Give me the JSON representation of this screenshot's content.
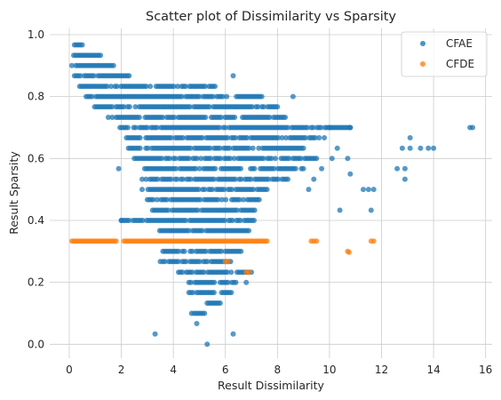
{
  "chart_data": {
    "type": "scatter",
    "title": "Scatter plot of Dissimilarity vs Sparsity",
    "xlabel": "Result Dissimilarity",
    "ylabel": "Result Sparsity",
    "xlim": [
      -0.75,
      16.25
    ],
    "ylim": [
      -0.045,
      1.02
    ],
    "xticks": [
      0,
      2,
      4,
      6,
      8,
      10,
      12,
      14,
      16
    ],
    "yticks": [
      0.0,
      0.2,
      0.4,
      0.6,
      0.8,
      1.0
    ],
    "xtick_labels": [
      "0",
      "2",
      "4",
      "6",
      "8",
      "10",
      "12",
      "14",
      "16"
    ],
    "ytick_labels": [
      "0.0",
      "0.2",
      "0.4",
      "0.6",
      "0.8",
      "1.0"
    ],
    "grid": true,
    "legend_position": "top-right",
    "series": [
      {
        "name": "CFAE",
        "color": "#1f77b4",
        "bands": [
          [
            0.967,
            0.2,
            0.5
          ],
          [
            0.933,
            0.1,
            1.2
          ],
          [
            0.9,
            0.1,
            1.7
          ],
          [
            0.867,
            0.2,
            2.3
          ],
          [
            0.833,
            0.4,
            5.6
          ],
          [
            0.8,
            0.5,
            7.4
          ],
          [
            0.767,
            0.9,
            8.0
          ],
          [
            0.733,
            1.5,
            8.3
          ],
          [
            0.7,
            1.8,
            10.8
          ],
          [
            0.667,
            2.2,
            9.6
          ],
          [
            0.633,
            2.2,
            9.0
          ],
          [
            0.6,
            2.5,
            9.5
          ],
          [
            0.567,
            2.9,
            9.0
          ],
          [
            0.533,
            2.8,
            8.4
          ],
          [
            0.5,
            2.8,
            7.6
          ],
          [
            0.467,
            3.0,
            7.3
          ],
          [
            0.433,
            3.2,
            7.2
          ],
          [
            0.4,
            2.0,
            7.1
          ],
          [
            0.367,
            3.4,
            6.9
          ],
          [
            0.3,
            3.6,
            6.6
          ],
          [
            0.267,
            3.6,
            6.2
          ],
          [
            0.233,
            4.2,
            6.9
          ],
          [
            0.2,
            4.6,
            6.4
          ],
          [
            0.167,
            4.6,
            6.3
          ],
          [
            0.133,
            5.3,
            5.8
          ],
          [
            0.1,
            4.8,
            5.2
          ]
        ],
        "points": [
          [
            6.3,
            0.867
          ],
          [
            8.6,
            0.8
          ],
          [
            10.0,
            0.7
          ],
          [
            10.8,
            0.7
          ],
          [
            9.8,
            0.667
          ],
          [
            10.3,
            0.633
          ],
          [
            10.1,
            0.6
          ],
          [
            10.7,
            0.6
          ],
          [
            9.7,
            0.567
          ],
          [
            10.8,
            0.55
          ],
          [
            9.4,
            0.533
          ],
          [
            9.2,
            0.5
          ],
          [
            10.4,
            0.433
          ],
          [
            11.3,
            0.5
          ],
          [
            11.5,
            0.5
          ],
          [
            11.7,
            0.5
          ],
          [
            11.6,
            0.433
          ],
          [
            12.6,
            0.567
          ],
          [
            12.9,
            0.567
          ],
          [
            12.8,
            0.633
          ],
          [
            13.1,
            0.633
          ],
          [
            13.1,
            0.667
          ],
          [
            13.5,
            0.633
          ],
          [
            13.8,
            0.633
          ],
          [
            14.0,
            0.633
          ],
          [
            12.9,
            0.533
          ],
          [
            15.4,
            0.7
          ],
          [
            15.5,
            0.7
          ],
          [
            3.3,
            0.033
          ],
          [
            5.3,
            0.0
          ],
          [
            6.3,
            0.033
          ],
          [
            4.9,
            0.067
          ],
          [
            4.7,
            0.1
          ],
          [
            7.0,
            0.233
          ],
          [
            6.8,
            0.2
          ],
          [
            3.5,
            0.267
          ],
          [
            2.0,
            0.4
          ],
          [
            1.9,
            0.567
          ]
        ]
      },
      {
        "name": "CFDE",
        "color": "#ff7f0e",
        "bands": [
          [
            0.333,
            0.1,
            1.8
          ],
          [
            0.333,
            2.1,
            7.6
          ]
        ],
        "points": [
          [
            9.3,
            0.333
          ],
          [
            9.4,
            0.333
          ],
          [
            9.5,
            0.333
          ],
          [
            11.6,
            0.333
          ],
          [
            11.7,
            0.333
          ],
          [
            10.7,
            0.3
          ],
          [
            10.75,
            0.297
          ],
          [
            6.8,
            0.233
          ],
          [
            6.9,
            0.233
          ],
          [
            6.0,
            0.267
          ],
          [
            6.1,
            0.267
          ]
        ]
      }
    ]
  }
}
